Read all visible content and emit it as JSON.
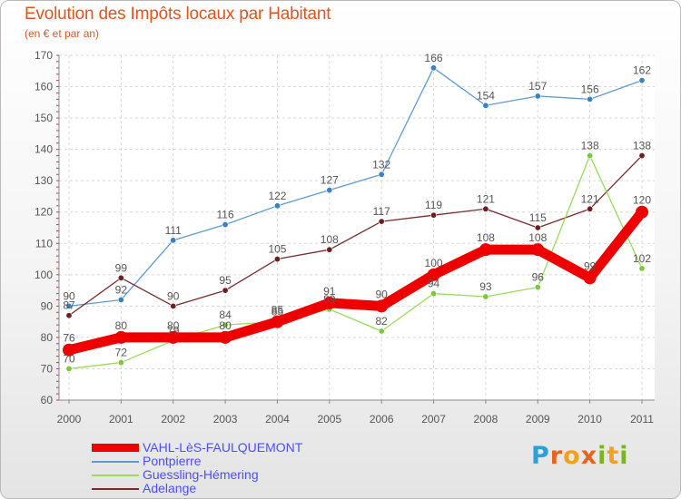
{
  "title": "Evolution des Impôts locaux par Habitant",
  "subtitle": "(en € et par an)",
  "logo": {
    "text": "Proxiti",
    "letters": [
      "P",
      "r",
      "o",
      "x",
      "i",
      "t",
      "i"
    ],
    "colors": [
      "#2f9fd8",
      "#e8641e",
      "#f2a21a",
      "#e8641e",
      "#7ab51d",
      "#f2a21a",
      "#7ab51d"
    ]
  },
  "chart_data": {
    "type": "line",
    "categories": [
      "2000",
      "2001",
      "2002",
      "2003",
      "2004",
      "2005",
      "2006",
      "2007",
      "2008",
      "2009",
      "2010",
      "2011"
    ],
    "ylim": [
      60,
      170
    ],
    "yticks": [
      60,
      70,
      80,
      90,
      100,
      110,
      120,
      130,
      140,
      150,
      160,
      170
    ],
    "grid": true,
    "title": "Evolution des Impôts locaux par Habitant",
    "ylabel": "(en € et par an)",
    "series": [
      {
        "name": "Pontpierre",
        "color": "#5b9bd5",
        "dot": "#3b80c0",
        "thick": false,
        "values": [
          90,
          92,
          111,
          116,
          122,
          127,
          132,
          166,
          154,
          157,
          156,
          162
        ],
        "labels": [
          "90",
          "92",
          "111",
          "116",
          "122",
          "127",
          "132",
          "166",
          "154",
          "157",
          "156",
          "162"
        ]
      },
      {
        "name": "Adelange",
        "color": "#7a2a2a",
        "dot": "#6b1f1f",
        "thick": false,
        "values": [
          87,
          99,
          90,
          95,
          105,
          108,
          117,
          119,
          121,
          115,
          121,
          138
        ],
        "labels": [
          "87",
          "99",
          "90",
          "95",
          "105",
          "108",
          "117",
          "119",
          "121",
          "115",
          "121",
          "138"
        ]
      },
      {
        "name": "Guessling-Hémering",
        "color": "#9adc5a",
        "dot": "#7cc83c",
        "thick": false,
        "values": [
          70,
          72,
          79,
          84,
          85,
          89,
          82,
          94,
          93,
          96,
          138,
          102
        ],
        "labels": [
          "70",
          "72",
          "79",
          "84",
          "85",
          "89",
          "82",
          "94",
          "93",
          "96",
          "138",
          "102"
        ]
      },
      {
        "name": "VAHL-LèS-FAULQUEMONT",
        "color": "#ee0000",
        "dot": "#ee0000",
        "thick": true,
        "values": [
          76,
          80,
          80,
          80,
          85,
          91,
          90,
          100,
          108,
          108,
          99,
          120
        ],
        "labels": [
          "76",
          "80",
          "80",
          "80",
          "85",
          "91",
          "90",
          "100",
          "108",
          "108",
          "99",
          "120"
        ]
      }
    ],
    "legend": [
      {
        "name": "VAHL-LèS-FAULQUEMONT",
        "color": "#ee0000",
        "thick": true
      },
      {
        "name": "Pontpierre",
        "color": "#5b9bd5",
        "thick": false
      },
      {
        "name": "Guessling-Hémering",
        "color": "#9adc5a",
        "thick": false
      },
      {
        "name": "Adelange",
        "color": "#7a2a2a",
        "thick": false
      }
    ]
  }
}
